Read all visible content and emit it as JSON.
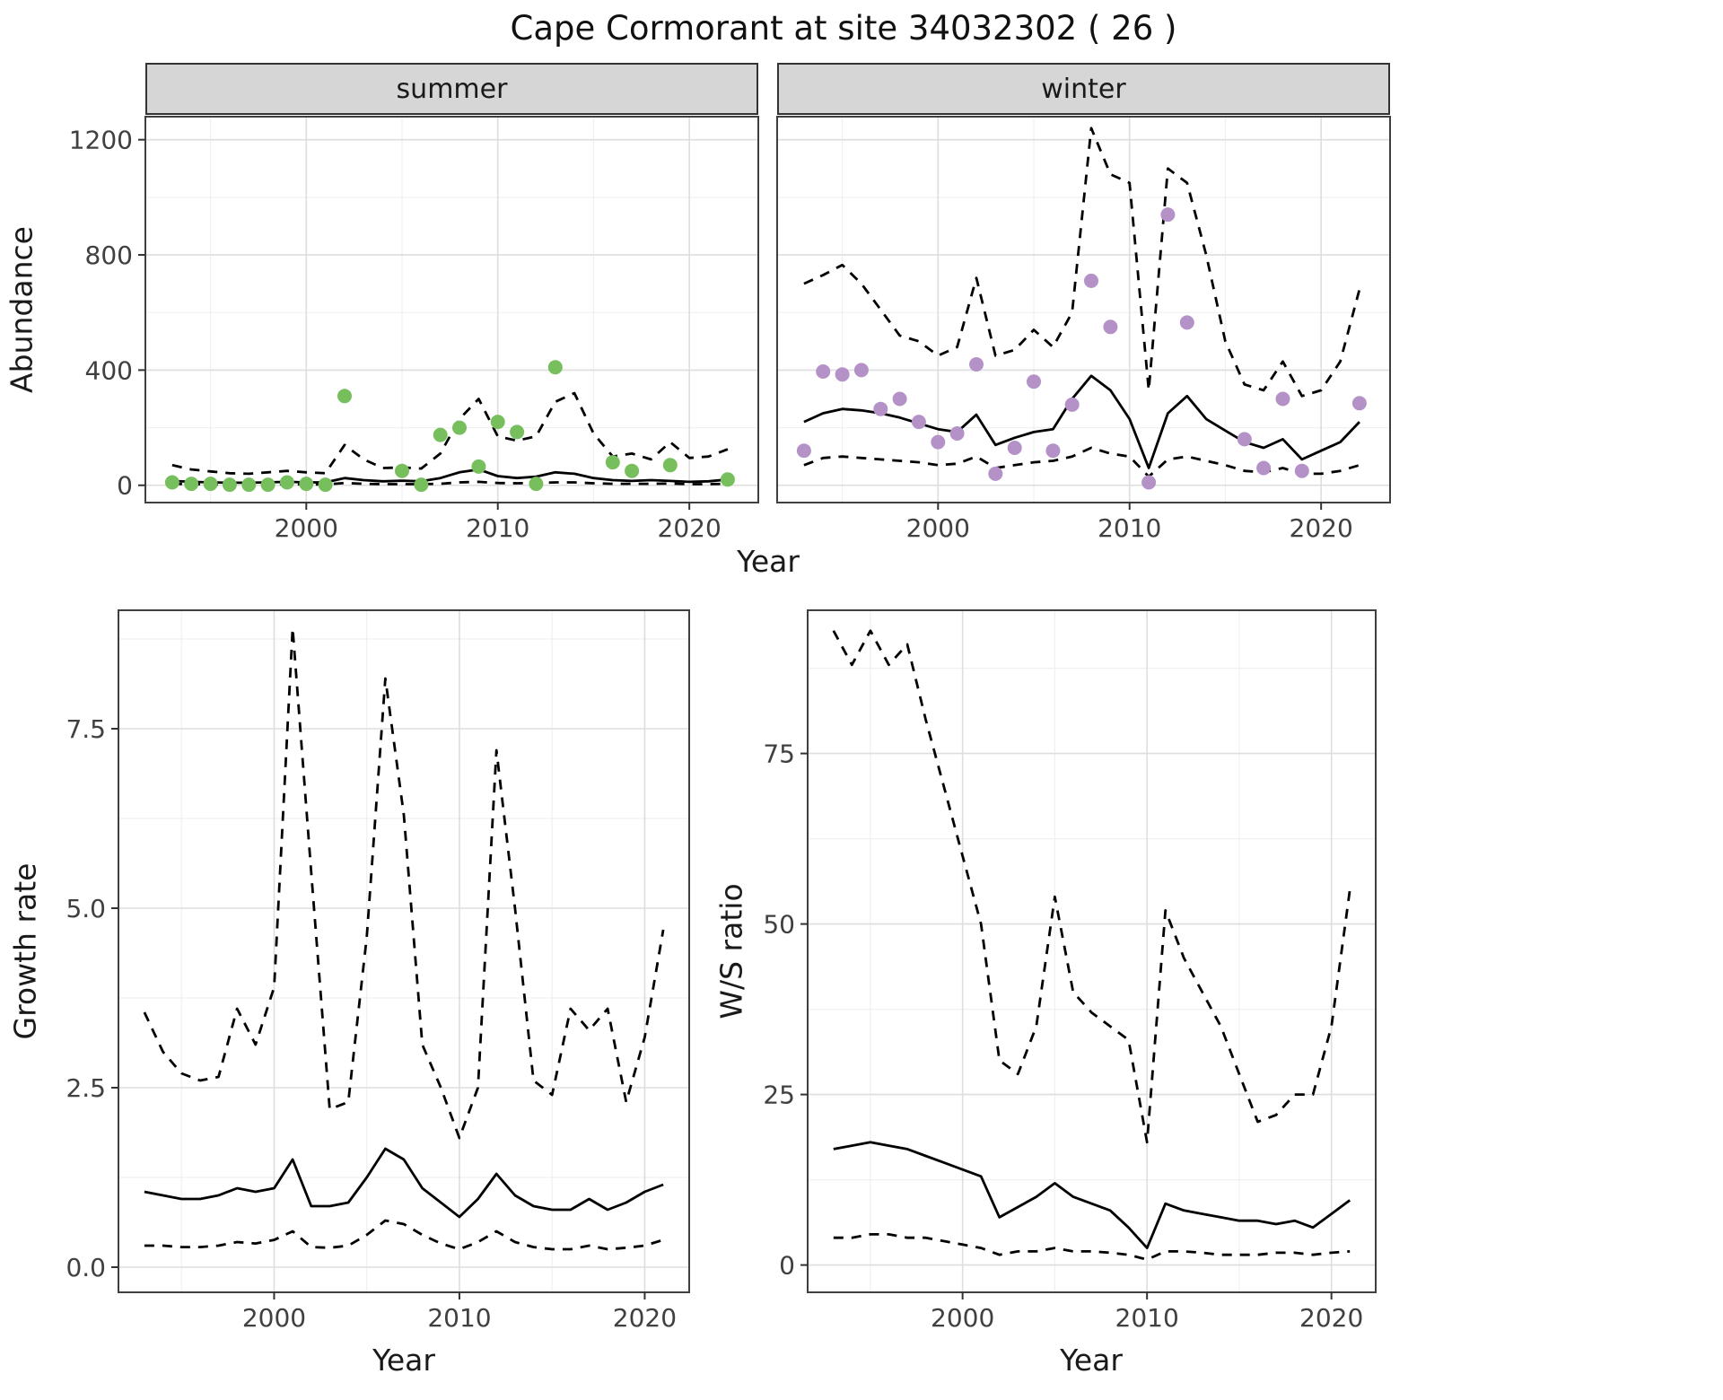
{
  "title": "Cape Cormorant at site 34032302 ( 26 )",
  "facets": [
    {
      "label": "summer"
    },
    {
      "label": "winter"
    }
  ],
  "axes": {
    "abundance": "Abundance",
    "year": "Year",
    "growth": "Growth rate",
    "ws": "W/S ratio"
  },
  "colors": {
    "summer_points": "#77BF5D",
    "winter_points": "#B492C8",
    "line": "#000000",
    "panel_bg": "#FFFFFF",
    "grid_major": "#DEDEDE",
    "grid_minor": "#F0F0F0",
    "strip_bg": "#D6D6D6",
    "panel_border": "#3F3F3F"
  },
  "chart_data": [
    {
      "id": "abundance_summer",
      "type": "line",
      "title": "summer",
      "xlabel": "Year",
      "ylabel": "Abundance",
      "xlim": [
        1991.6,
        2023.6
      ],
      "ylim": [
        -60,
        1280
      ],
      "x_ticks": {
        "values": [
          2000,
          2010,
          2020
        ],
        "labels": [
          "2000",
          "2010",
          "2020"
        ]
      },
      "y_ticks": {
        "values": [
          0,
          400,
          800,
          1200
        ],
        "labels": [
          "0",
          "400",
          "800",
          "1200"
        ]
      },
      "x_minor": [
        1995,
        2005,
        2015
      ],
      "y_minor": [
        200,
        600,
        1000
      ],
      "grid": true,
      "legend": "none",
      "series": [
        {
          "name": "upper_ci",
          "style": "dashed",
          "x": [
            1993,
            1994,
            1995,
            1996,
            1997,
            1998,
            1999,
            2000,
            2001,
            2002,
            2003,
            2004,
            2005,
            2006,
            2007,
            2008,
            2009,
            2010,
            2011,
            2012,
            2013,
            2014,
            2015,
            2016,
            2017,
            2018,
            2019,
            2020,
            2021,
            2022
          ],
          "y": [
            70,
            55,
            48,
            42,
            40,
            45,
            50,
            45,
            42,
            140,
            90,
            60,
            62,
            58,
            110,
            230,
            300,
            170,
            155,
            170,
            290,
            320,
            180,
            100,
            110,
            90,
            150,
            95,
            100,
            125
          ]
        },
        {
          "name": "lower_ci",
          "style": "dashed",
          "x": [
            1993,
            1994,
            1995,
            1996,
            1997,
            1998,
            1999,
            2000,
            2001,
            2002,
            2003,
            2004,
            2005,
            2006,
            2007,
            2008,
            2009,
            2010,
            2011,
            2012,
            2013,
            2014,
            2015,
            2016,
            2017,
            2018,
            2019,
            2020,
            2021,
            2022
          ],
          "y": [
            5,
            4,
            3,
            3,
            3,
            3,
            4,
            3,
            3,
            8,
            5,
            4,
            4,
            4,
            5,
            10,
            12,
            8,
            7,
            8,
            10,
            10,
            7,
            5,
            5,
            5,
            6,
            4,
            4,
            5
          ]
        },
        {
          "name": "median_fit",
          "style": "solid",
          "x": [
            1993,
            1994,
            1995,
            1996,
            1997,
            1998,
            1999,
            2000,
            2001,
            2002,
            2003,
            2004,
            2005,
            2006,
            2007,
            2008,
            2009,
            2010,
            2011,
            2012,
            2013,
            2014,
            2015,
            2016,
            2017,
            2018,
            2019,
            2020,
            2021,
            2022
          ],
          "y": [
            15,
            12,
            10,
            9,
            9,
            10,
            12,
            10,
            10,
            25,
            18,
            14,
            16,
            14,
            25,
            45,
            55,
            32,
            25,
            30,
            45,
            40,
            25,
            18,
            15,
            18,
            15,
            12,
            14,
            20
          ]
        },
        {
          "name": "observed_counts",
          "style": "points",
          "color": "#77BF5D",
          "x": [
            1993,
            1994,
            1995,
            1996,
            1997,
            1998,
            1999,
            2000,
            2001,
            2002,
            2005,
            2006,
            2007,
            2008,
            2009,
            2010,
            2011,
            2012,
            2013,
            2016,
            2017,
            2019,
            2022
          ],
          "y": [
            10,
            5,
            5,
            2,
            2,
            2,
            10,
            5,
            2,
            310,
            50,
            2,
            175,
            200,
            65,
            220,
            185,
            5,
            410,
            80,
            50,
            70,
            20
          ]
        }
      ]
    },
    {
      "id": "abundance_winter",
      "type": "line",
      "title": "winter",
      "xlabel": "Year",
      "ylabel": "Abundance",
      "xlim": [
        1991.6,
        2023.6
      ],
      "ylim": [
        -60,
        1280
      ],
      "x_ticks": {
        "values": [
          2000,
          2010,
          2020
        ],
        "labels": [
          "2000",
          "2010",
          "2020"
        ]
      },
      "y_ticks": {
        "values": [
          0,
          400,
          800,
          1200
        ],
        "labels": [
          "0",
          "400",
          "800",
          "1200"
        ]
      },
      "x_minor": [
        1995,
        2005,
        2015
      ],
      "y_minor": [
        200,
        600,
        1000
      ],
      "grid": true,
      "legend": "none",
      "series": [
        {
          "name": "upper_ci",
          "style": "dashed",
          "x": [
            1993,
            1994,
            1995,
            1996,
            1997,
            1998,
            1999,
            2000,
            2001,
            2002,
            2003,
            2004,
            2005,
            2006,
            2007,
            2008,
            2009,
            2010,
            2011,
            2012,
            2013,
            2014,
            2015,
            2016,
            2017,
            2018,
            2019,
            2020,
            2021,
            2022
          ],
          "y": [
            700,
            730,
            765,
            700,
            610,
            520,
            500,
            450,
            480,
            720,
            450,
            470,
            540,
            480,
            600,
            1240,
            1080,
            1050,
            330,
            1100,
            1050,
            800,
            500,
            350,
            330,
            430,
            310,
            330,
            430,
            680
          ]
        },
        {
          "name": "lower_ci",
          "style": "dashed",
          "x": [
            1993,
            1994,
            1995,
            1996,
            1997,
            1998,
            1999,
            2000,
            2001,
            2002,
            2003,
            2004,
            2005,
            2006,
            2007,
            2008,
            2009,
            2010,
            2011,
            2012,
            2013,
            2014,
            2015,
            2016,
            2017,
            2018,
            2019,
            2020,
            2021,
            2022
          ],
          "y": [
            70,
            95,
            100,
            95,
            90,
            85,
            80,
            70,
            75,
            100,
            60,
            70,
            80,
            85,
            100,
            130,
            110,
            100,
            30,
            90,
            100,
            85,
            70,
            50,
            45,
            60,
            40,
            40,
            50,
            70
          ]
        },
        {
          "name": "median_fit",
          "style": "solid",
          "x": [
            1993,
            1994,
            1995,
            1996,
            1997,
            1998,
            1999,
            2000,
            2001,
            2002,
            2003,
            2004,
            2005,
            2006,
            2007,
            2008,
            2009,
            2010,
            2011,
            2012,
            2013,
            2014,
            2015,
            2016,
            2017,
            2018,
            2019,
            2020,
            2021,
            2022
          ],
          "y": [
            220,
            250,
            265,
            260,
            250,
            235,
            215,
            195,
            185,
            245,
            140,
            165,
            185,
            195,
            300,
            380,
            330,
            230,
            60,
            250,
            310,
            230,
            190,
            150,
            130,
            160,
            90,
            120,
            150,
            220
          ]
        },
        {
          "name": "observed_counts",
          "style": "points",
          "color": "#B492C8",
          "x": [
            1993,
            1994,
            1995,
            1996,
            1997,
            1998,
            1999,
            2000,
            2001,
            2002,
            2003,
            2004,
            2005,
            2006,
            2007,
            2008,
            2009,
            2011,
            2012,
            2013,
            2016,
            2017,
            2018,
            2019,
            2022
          ],
          "y": [
            120,
            395,
            385,
            400,
            265,
            300,
            220,
            150,
            180,
            420,
            40,
            130,
            360,
            120,
            280,
            710,
            550,
            10,
            940,
            565,
            160,
            60,
            300,
            50,
            285
          ]
        }
      ]
    },
    {
      "id": "growth_rate",
      "type": "line",
      "title": "",
      "xlabel": "Year",
      "ylabel": "Growth rate",
      "xlim": [
        1991.6,
        2022.4
      ],
      "ylim": [
        -0.35,
        9.15
      ],
      "x_ticks": {
        "values": [
          2000,
          2010,
          2020
        ],
        "labels": [
          "2000",
          "2010",
          "2020"
        ]
      },
      "y_ticks": {
        "values": [
          0,
          2.5,
          5,
          7.5
        ],
        "labels": [
          "0.0",
          "2.5",
          "5.0",
          "7.5"
        ]
      },
      "x_minor": [
        1995,
        2005,
        2015
      ],
      "y_minor": [
        1.25,
        3.75,
        6.25,
        8.75
      ],
      "grid": true,
      "legend": "none",
      "series": [
        {
          "name": "upper_ci",
          "style": "dashed",
          "x": [
            1993,
            1994,
            1995,
            1996,
            1997,
            1998,
            1999,
            2000,
            2001,
            2002,
            2003,
            2004,
            2005,
            2006,
            2007,
            2008,
            2009,
            2010,
            2011,
            2012,
            2013,
            2014,
            2015,
            2016,
            2017,
            2018,
            2019,
            2020,
            2021
          ],
          "y": [
            3.55,
            3.0,
            2.7,
            2.6,
            2.65,
            3.6,
            3.1,
            3.9,
            8.9,
            5.5,
            2.2,
            2.3,
            4.6,
            8.2,
            6.3,
            3.1,
            2.5,
            1.8,
            2.5,
            7.2,
            5.0,
            2.6,
            2.4,
            3.6,
            3.3,
            3.6,
            2.3,
            3.2,
            4.7
          ]
        },
        {
          "name": "lower_ci",
          "style": "dashed",
          "x": [
            1993,
            1994,
            1995,
            1996,
            1997,
            1998,
            1999,
            2000,
            2001,
            2002,
            2003,
            2004,
            2005,
            2006,
            2007,
            2008,
            2009,
            2010,
            2011,
            2012,
            2013,
            2014,
            2015,
            2016,
            2017,
            2018,
            2019,
            2020,
            2021
          ],
          "y": [
            0.3,
            0.3,
            0.28,
            0.28,
            0.3,
            0.35,
            0.33,
            0.38,
            0.5,
            0.28,
            0.27,
            0.3,
            0.45,
            0.65,
            0.6,
            0.45,
            0.33,
            0.25,
            0.35,
            0.5,
            0.35,
            0.28,
            0.25,
            0.25,
            0.3,
            0.25,
            0.27,
            0.3,
            0.38
          ]
        },
        {
          "name": "median_fit",
          "style": "solid",
          "x": [
            1993,
            1994,
            1995,
            1996,
            1997,
            1998,
            1999,
            2000,
            2001,
            2002,
            2003,
            2004,
            2005,
            2006,
            2007,
            2008,
            2009,
            2010,
            2011,
            2012,
            2013,
            2014,
            2015,
            2016,
            2017,
            2018,
            2019,
            2020,
            2021
          ],
          "y": [
            1.05,
            1.0,
            0.95,
            0.95,
            1.0,
            1.1,
            1.05,
            1.1,
            1.5,
            0.85,
            0.85,
            0.9,
            1.25,
            1.65,
            1.5,
            1.1,
            0.9,
            0.7,
            0.95,
            1.3,
            1.0,
            0.85,
            0.8,
            0.8,
            0.95,
            0.8,
            0.9,
            1.05,
            1.15
          ]
        }
      ]
    },
    {
      "id": "ws_ratio",
      "type": "line",
      "title": "",
      "xlabel": "Year",
      "ylabel": "W/S ratio",
      "xlim": [
        1991.6,
        2022.4
      ],
      "ylim": [
        -4,
        96
      ],
      "x_ticks": {
        "values": [
          2000,
          2010,
          2020
        ],
        "labels": [
          "2000",
          "2010",
          "2020"
        ]
      },
      "y_ticks": {
        "values": [
          0,
          25,
          50,
          75
        ],
        "labels": [
          "0",
          "25",
          "50",
          "75"
        ]
      },
      "x_minor": [
        1995,
        2005,
        2015
      ],
      "y_minor": [
        12.5,
        37.5,
        62.5,
        87.5
      ],
      "grid": true,
      "legend": "none",
      "series": [
        {
          "name": "upper_ci",
          "style": "dashed",
          "x": [
            1993,
            1994,
            1995,
            1996,
            1997,
            1998,
            1999,
            2000,
            2001,
            2002,
            2003,
            2004,
            2005,
            2006,
            2007,
            2008,
            2009,
            2010,
            2011,
            2012,
            2013,
            2014,
            2015,
            2016,
            2017,
            2018,
            2019,
            2020,
            2021
          ],
          "y": [
            93,
            88,
            93,
            88,
            91,
            80,
            70,
            60,
            50,
            30,
            28,
            35,
            54,
            40,
            37,
            35,
            33,
            18,
            52,
            45,
            40,
            35,
            28,
            21,
            22,
            25,
            25,
            35,
            55
          ]
        },
        {
          "name": "lower_ci",
          "style": "dashed",
          "x": [
            1993,
            1994,
            1995,
            1996,
            1997,
            1998,
            1999,
            2000,
            2001,
            2002,
            2003,
            2004,
            2005,
            2006,
            2007,
            2008,
            2009,
            2010,
            2011,
            2012,
            2013,
            2014,
            2015,
            2016,
            2017,
            2018,
            2019,
            2020,
            2021
          ],
          "y": [
            4,
            4,
            4.5,
            4.5,
            4,
            4,
            3.5,
            3,
            2.5,
            1.5,
            2,
            2,
            2.5,
            2,
            2,
            1.8,
            1.5,
            0.8,
            2,
            2,
            1.8,
            1.5,
            1.5,
            1.5,
            1.8,
            1.8,
            1.5,
            1.8,
            2
          ]
        },
        {
          "name": "median_fit",
          "style": "solid",
          "x": [
            1993,
            1994,
            1995,
            1996,
            1997,
            1998,
            1999,
            2000,
            2001,
            2002,
            2003,
            2004,
            2005,
            2006,
            2007,
            2008,
            2009,
            2010,
            2011,
            2012,
            2013,
            2014,
            2015,
            2016,
            2017,
            2018,
            2019,
            2020,
            2021
          ],
          "y": [
            17,
            17.5,
            18,
            17.5,
            17,
            16,
            15,
            14,
            13,
            7,
            8.5,
            10,
            12,
            10,
            9,
            8,
            5.5,
            2.5,
            9,
            8,
            7.5,
            7,
            6.5,
            6.5,
            6,
            6.5,
            5.5,
            7.5,
            9.5
          ]
        }
      ]
    }
  ]
}
